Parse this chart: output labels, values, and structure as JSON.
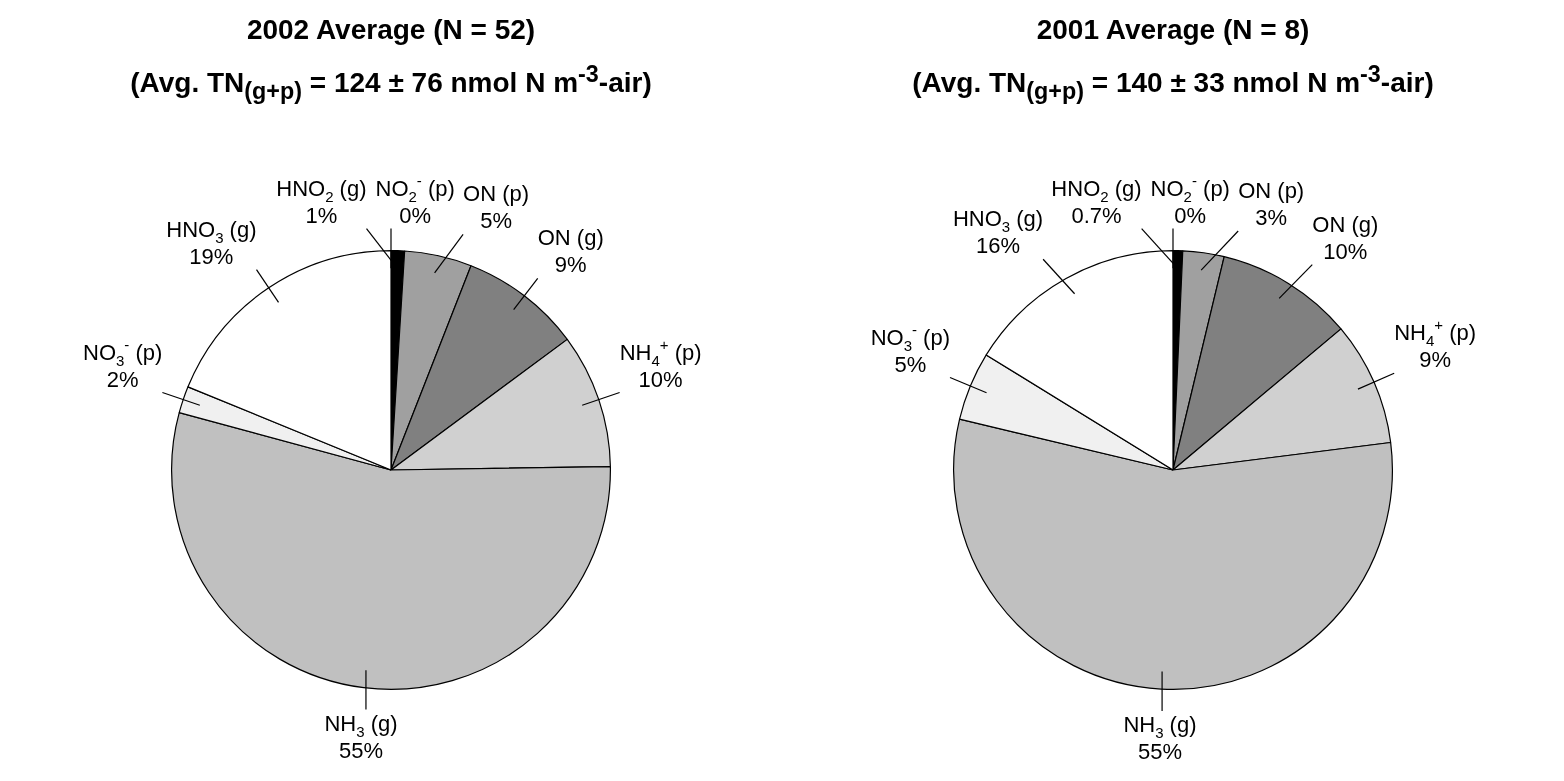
{
  "chart_data": [
    {
      "type": "pie",
      "title": "2002 Average (N = 52)",
      "subtitle": "(Avg. TN$_{(g+p)}$ = 124 ± 76 nmol N m$^{-3}$-air)",
      "categories": [
        "HNO$_{2}$ (g)",
        "ON (p)",
        "ON (g)",
        "NH$_{4}$$^{+}$ (p)",
        "NH$_{3}$ (g)",
        "NO$_{3}$$^{-}$ (p)",
        "HNO$_{3}$ (g)",
        "NO$_{2}$$^{-}$ (p)"
      ],
      "values": [
        1,
        5,
        9,
        10,
        55,
        2,
        19,
        0
      ],
      "value_labels": [
        "1%",
        "5%",
        "9%",
        "10%",
        "55%",
        "2%",
        "19%",
        "0%"
      ],
      "colors": [
        "#000000",
        "#a0a0a0",
        "#808080",
        "#d0d0d0",
        "#c0c0c0",
        "#f0f0f0",
        "#ffffff",
        "#ffffff"
      ]
    },
    {
      "type": "pie",
      "title": "2001 Average (N = 8)",
      "subtitle": "(Avg. TN$_{(g+p)}$ = 140 ± 33 nmol N m$^{-3}$-air)",
      "categories": [
        "HNO$_{2}$ (g)",
        "ON (p)",
        "ON (g)",
        "NH$_{4}$$^{+}$ (p)",
        "NH$_{3}$ (g)",
        "NO$_{3}$$^{-}$ (p)",
        "HNO$_{3}$ (g)",
        "NO$_{2}$$^{-}$ (p)"
      ],
      "values": [
        0.7,
        3,
        10,
        9,
        55,
        5,
        16,
        0
      ],
      "value_labels": [
        "0.7%",
        "3%",
        "10%",
        "9%",
        "55%",
        "5%",
        "16%",
        "0%"
      ],
      "colors": [
        "#000000",
        "#a0a0a0",
        "#808080",
        "#d0d0d0",
        "#c0c0c0",
        "#f0f0f0",
        "#ffffff",
        "#ffffff"
      ]
    }
  ]
}
